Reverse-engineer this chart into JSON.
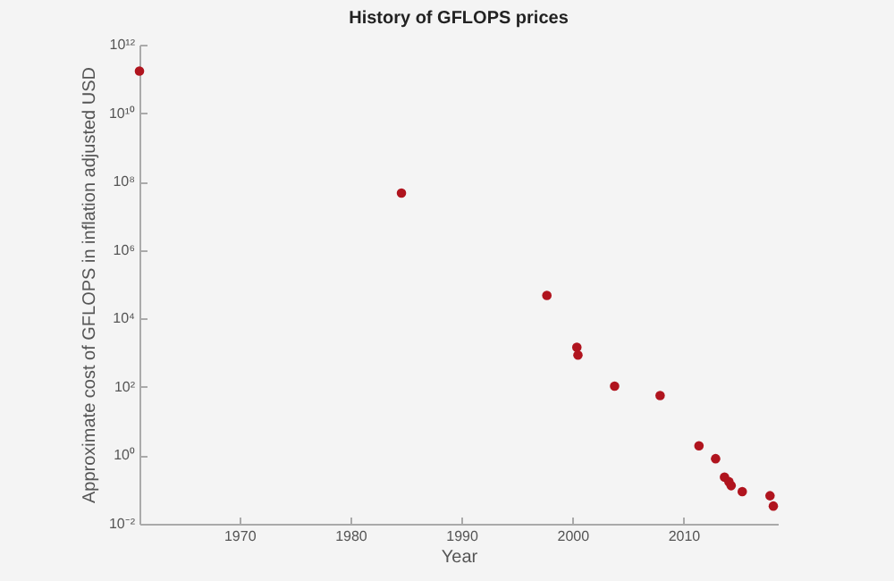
{
  "chart_data": {
    "type": "scatter",
    "title": "History of GFLOPS prices",
    "xlabel": "Year",
    "ylabel": "Approximate cost of GFLOPS in inflation adjusted USD",
    "x": [
      1961,
      1984.6,
      1997.7,
      2000.4,
      2000.5,
      2003.8,
      2007.9,
      2011.4,
      2012.9,
      2013.7,
      2014.1,
      2014.3,
      2015.3,
      2017.8,
      2018.1
    ],
    "series": [
      {
        "color": "#b0141e",
        "values": [
          170000000000.0,
          46000000.0,
          47000.0,
          1440,
          850,
          105,
          56,
          1.9,
          0.8,
          0.23,
          0.17,
          0.13,
          0.087,
          0.066,
          0.033
        ]
      }
    ],
    "xlim": [
      1961,
      2018.5
    ],
    "xticks": [
      1970,
      1980,
      1990,
      2000,
      2010
    ],
    "ylim": [
      0.01,
      1000000000000.0
    ],
    "yticks": [
      {
        "value": 0.01,
        "label": "10⁻²"
      },
      {
        "value": 1,
        "label": "10⁰"
      },
      {
        "value": 100,
        "label": "10²"
      },
      {
        "value": 10000,
        "label": "10⁴"
      },
      {
        "value": 1000000.0,
        "label": "10⁶"
      },
      {
        "value": 100000000.0,
        "label": "10⁸"
      },
      {
        "value": 10000000000.0,
        "label": "10¹⁰"
      },
      {
        "value": 1000000000000.0,
        "label": "10¹²"
      }
    ],
    "log": true,
    "grid": false,
    "marker": "circle"
  }
}
